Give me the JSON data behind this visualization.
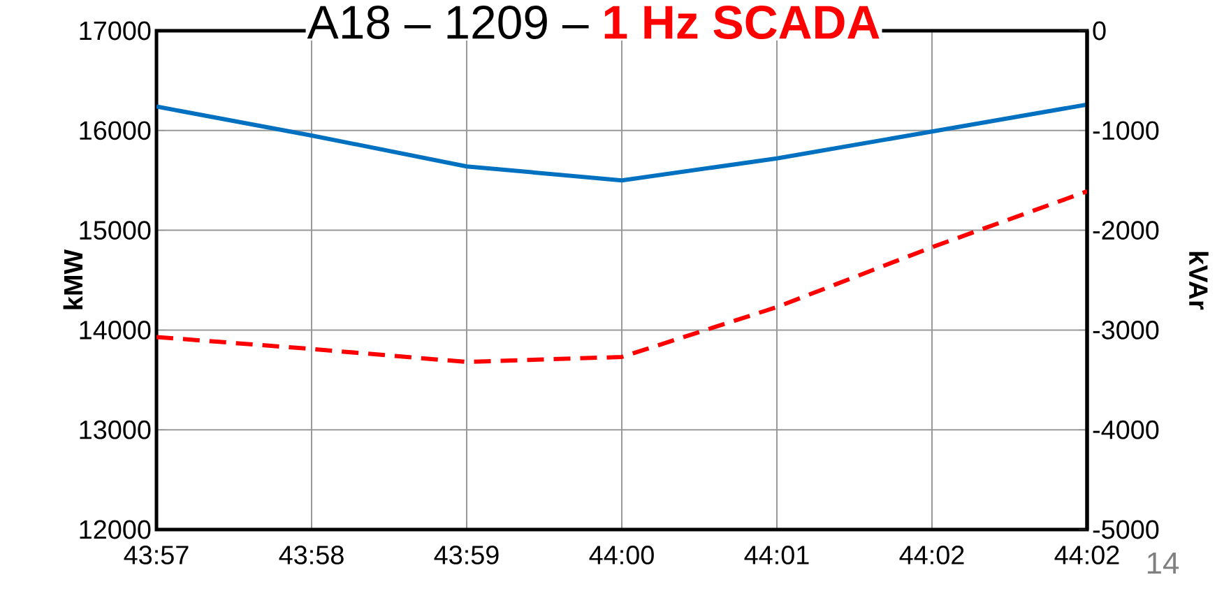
{
  "chart_data": {
    "type": "line",
    "title": "A18 – 1209 –",
    "subtitle": "1 Hz SCADA",
    "ylabel": "kMW",
    "y2label": "kVAr",
    "categories": [
      "43:57",
      "43:58",
      "43:59",
      "44:00",
      "44:01",
      "44:02",
      "44:02"
    ],
    "ylim": [
      12000,
      17000
    ],
    "yticks": [
      12000,
      13000,
      14000,
      15000,
      16000,
      17000
    ],
    "y2lim": [
      -5000,
      0
    ],
    "y2ticks": [
      -5000,
      -4000,
      -3000,
      -2000,
      -1000,
      0
    ],
    "grid": true,
    "marker": "none",
    "series": [
      {
        "color": "#0070c0",
        "axis": "y",
        "line_style": "solid",
        "values": [
          16240,
          15950,
          15640,
          15500,
          15720,
          15990,
          16260
        ]
      },
      {
        "color": "#ff0000",
        "axis": "y2",
        "line_style": "dashed",
        "values": [
          -3070,
          -3190,
          -3320,
          -3270,
          -2770,
          -2170,
          -1610
        ]
      }
    ],
    "annotations": [
      "14"
    ]
  }
}
